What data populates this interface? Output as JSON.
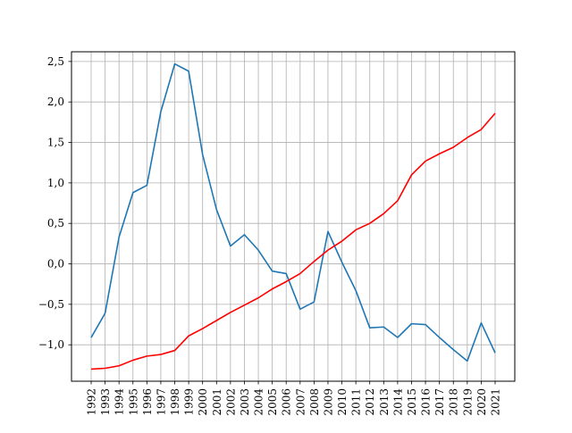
{
  "chart_data": {
    "type": "line",
    "title": "",
    "xlabel": "",
    "ylabel": "",
    "categories": [
      "1992",
      "1993",
      "1994",
      "1995",
      "1996",
      "1997",
      "1998",
      "1999",
      "2000",
      "2001",
      "2002",
      "2003",
      "2004",
      "2005",
      "2006",
      "2007",
      "2008",
      "2009",
      "2010",
      "2011",
      "2012",
      "2013",
      "2014",
      "2015",
      "2016",
      "2017",
      "2018",
      "2019",
      "2020",
      "2021"
    ],
    "ylim": [
      -1.45,
      2.62
    ],
    "yticks": [
      -1.0,
      -0.5,
      0.0,
      0.5,
      1.0,
      1.5,
      2.0,
      2.5
    ],
    "ytick_labels": [
      "−1,0",
      "−0,5",
      "0,0",
      "0,5",
      "1,0",
      "1,5",
      "2,0",
      "2,5"
    ],
    "grid": true,
    "legend": "none",
    "series": [
      {
        "color": "#1f77b4",
        "values": [
          -0.91,
          -0.61,
          0.33,
          0.88,
          0.97,
          1.88,
          2.47,
          2.38,
          1.35,
          0.67,
          0.22,
          0.36,
          0.17,
          -0.09,
          -0.12,
          -0.56,
          -0.47,
          0.4,
          0.02,
          -0.33,
          -0.79,
          -0.78,
          -0.91,
          -0.74,
          -0.75,
          -0.91,
          -1.06,
          -1.2,
          -0.73,
          -1.1
        ]
      },
      {
        "color": "#ff0000",
        "values": [
          -1.3,
          -1.29,
          -1.26,
          -1.19,
          -1.14,
          -1.12,
          -1.07,
          -0.89,
          -0.8,
          -0.7,
          -0.6,
          -0.51,
          -0.42,
          -0.31,
          -0.22,
          -0.12,
          0.03,
          0.17,
          0.28,
          0.42,
          0.5,
          0.62,
          0.78,
          1.1,
          1.27,
          1.36,
          1.44,
          1.56,
          1.66,
          1.86
        ]
      }
    ]
  }
}
